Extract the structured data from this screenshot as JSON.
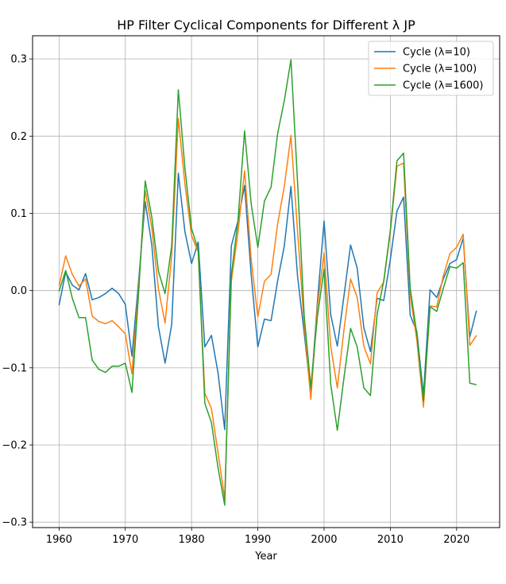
{
  "chart_data": {
    "type": "line",
    "title": "HP Filter Cyclical Components for Different λ JP",
    "xlabel": "Year",
    "ylabel": "",
    "xlim": [
      1956,
      2026.5
    ],
    "ylim": [
      -0.307,
      0.33
    ],
    "xticks": [
      1960,
      1970,
      1980,
      1990,
      2000,
      2010,
      2020
    ],
    "yticks": [
      -0.3,
      -0.2,
      -0.1,
      0.0,
      0.1,
      0.2,
      0.3
    ],
    "ytick_labels": [
      "−0.3",
      "−0.2",
      "−0.1",
      "0.0",
      "0.1",
      "0.2",
      "0.3"
    ],
    "grid": true,
    "legend_position": "top-right",
    "x": [
      1960,
      1961,
      1962,
      1963,
      1964,
      1965,
      1966,
      1967,
      1968,
      1969,
      1970,
      1971,
      1972,
      1973,
      1974,
      1975,
      1976,
      1977,
      1978,
      1979,
      1980,
      1981,
      1982,
      1983,
      1984,
      1985,
      1986,
      1987,
      1988,
      1989,
      1990,
      1991,
      1992,
      1993,
      1994,
      1995,
      1996,
      1997,
      1998,
      1999,
      2000,
      2001,
      2002,
      2003,
      2004,
      2005,
      2006,
      2007,
      2008,
      2009,
      2010,
      2011,
      2012,
      2013,
      2014,
      2015,
      2016,
      2017,
      2018,
      2019,
      2020,
      2021,
      2022,
      2023
    ],
    "series": [
      {
        "name": "Cycle (λ=10)",
        "color": "#1f77b4",
        "values": [
          -0.019,
          0.024,
          0.007,
          0.001,
          0.022,
          -0.012,
          -0.009,
          -0.004,
          0.003,
          -0.004,
          -0.018,
          -0.085,
          0.012,
          0.115,
          0.059,
          -0.047,
          -0.094,
          -0.044,
          0.152,
          0.076,
          0.035,
          0.063,
          -0.073,
          -0.058,
          -0.107,
          -0.18,
          0.058,
          0.09,
          0.136,
          0.02,
          -0.073,
          -0.037,
          -0.039,
          0.013,
          0.058,
          0.135,
          0.018,
          -0.055,
          -0.135,
          -0.014,
          0.09,
          -0.031,
          -0.072,
          -0.007,
          0.059,
          0.029,
          -0.048,
          -0.079,
          -0.01,
          -0.013,
          0.04,
          0.103,
          0.121,
          -0.032,
          -0.053,
          -0.135,
          0.001,
          -0.009,
          0.015,
          0.035,
          0.04,
          0.068,
          -0.06,
          -0.026
        ]
      },
      {
        "name": "Cycle (λ=100)",
        "color": "#ff7f0e",
        "values": [
          0.006,
          0.045,
          0.021,
          0.006,
          0.015,
          -0.033,
          -0.04,
          -0.043,
          -0.039,
          -0.047,
          -0.056,
          -0.108,
          0.003,
          0.13,
          0.081,
          0.002,
          -0.042,
          0.045,
          0.223,
          0.137,
          0.071,
          0.05,
          -0.133,
          -0.153,
          -0.21,
          -0.27,
          0.012,
          0.075,
          0.155,
          0.04,
          -0.034,
          0.012,
          0.021,
          0.087,
          0.135,
          0.201,
          0.076,
          -0.044,
          -0.141,
          -0.02,
          0.049,
          -0.072,
          -0.126,
          -0.051,
          0.015,
          -0.009,
          -0.072,
          -0.095,
          -0.003,
          0.011,
          0.076,
          0.161,
          0.165,
          -0.006,
          -0.064,
          -0.151,
          -0.02,
          -0.021,
          0.019,
          0.048,
          0.056,
          0.073,
          -0.071,
          -0.058
        ]
      },
      {
        "name": "Cycle (λ=1600)",
        "color": "#2ca02c",
        "values": [
          -0.001,
          0.026,
          -0.01,
          -0.035,
          -0.035,
          -0.09,
          -0.102,
          -0.106,
          -0.098,
          -0.098,
          -0.094,
          -0.132,
          -0.004,
          0.142,
          0.095,
          0.025,
          -0.004,
          0.058,
          0.26,
          0.158,
          0.08,
          0.053,
          -0.146,
          -0.171,
          -0.23,
          -0.278,
          0.02,
          0.09,
          0.207,
          0.112,
          0.056,
          0.116,
          0.134,
          0.204,
          0.246,
          0.299,
          0.14,
          -0.033,
          -0.125,
          -0.033,
          0.028,
          -0.121,
          -0.181,
          -0.113,
          -0.049,
          -0.073,
          -0.126,
          -0.136,
          -0.031,
          0.012,
          0.078,
          0.168,
          0.178,
          0.003,
          -0.056,
          -0.143,
          -0.021,
          -0.027,
          0.003,
          0.031,
          0.029,
          0.036,
          -0.12,
          -0.122
        ]
      }
    ]
  }
}
